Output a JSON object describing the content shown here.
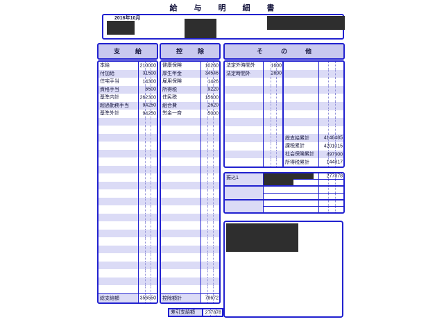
{
  "title": "給与明細書",
  "header": {
    "date": "2016年10月"
  },
  "payment": {
    "header": "支給",
    "row_count": 29,
    "items": [
      {
        "label": "本給",
        "value": "210000"
      },
      {
        "label": "付加給",
        "value": "31500"
      },
      {
        "label": "住宅手当",
        "value": "14300"
      },
      {
        "label": "資格手当",
        "value": "6500"
      },
      {
        "label": "基準内計",
        "value": "262300"
      },
      {
        "label": "超過勤務手当",
        "value": "94250"
      },
      {
        "label": "基準外計",
        "value": "94250"
      }
    ],
    "total_label": "総支給額",
    "total_value": "356550"
  },
  "deduction": {
    "header": "控除",
    "row_count": 29,
    "items": [
      {
        "label": "健康保険",
        "value": "10260"
      },
      {
        "label": "厚生年金",
        "value": "34546"
      },
      {
        "label": "雇用保険",
        "value": "1426"
      },
      {
        "label": "所得税",
        "value": "9220"
      },
      {
        "label": "住民税",
        "value": "15600"
      },
      {
        "label": "組合費",
        "value": "2620"
      },
      {
        "label": "労金一斉",
        "value": "5000"
      }
    ],
    "total_label": "控除額計",
    "total_value": "78672"
  },
  "other": {
    "header": "その他",
    "row_count": 13,
    "left_items": [
      {
        "label": "法定外時間外",
        "value": "1600"
      },
      {
        "label": "法定時間外",
        "value": "2800"
      }
    ],
    "right_items": [
      {
        "label": "総支給累計",
        "value": "4146485"
      },
      {
        "label": "課税累計",
        "value": "4201015"
      },
      {
        "label": "社会保険累計",
        "value": "497900"
      },
      {
        "label": "所得税累計",
        "value": "144817"
      }
    ]
  },
  "transfer": {
    "rows": [
      {
        "label": "振込1",
        "value": "277878"
      },
      {
        "label": "",
        "value": ""
      },
      {
        "label": "",
        "value": ""
      }
    ]
  },
  "net": {
    "label": "差引支給額",
    "value": "277878"
  },
  "colors": {
    "border_blue": "#2121cf",
    "stripe_lavender": "#dbdbf6",
    "header_lavender": "#c9c9ef",
    "redaction_black": "#2e2e2e"
  }
}
